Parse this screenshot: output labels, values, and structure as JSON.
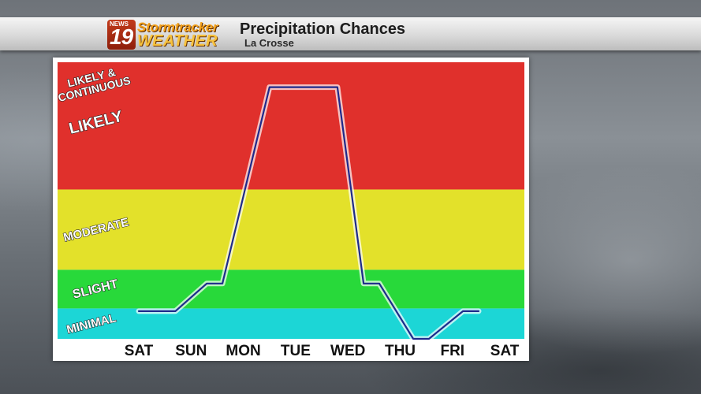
{
  "header": {
    "logo": {
      "news": "NEWS",
      "number": "19",
      "brand_top": "Stormtracker",
      "brand_bottom": "WEATHER",
      "accent_color": "#f5a21b",
      "box_color": "#b1321a"
    },
    "title": "Precipitation Chances",
    "location": "La Crosse"
  },
  "chart_data": {
    "type": "line",
    "title": "Precipitation Chances",
    "subtitle": "La Crosse",
    "categories": [
      "SAT",
      "SUN",
      "MON",
      "TUE",
      "WED",
      "THU",
      "FRI",
      "SAT"
    ],
    "x": [
      "SAT",
      "SUN",
      "MON",
      "TUE",
      "WED",
      "THU",
      "FRI",
      "SAT"
    ],
    "ylim": [
      0,
      100
    ],
    "bands": [
      {
        "label": "MINIMAL",
        "from": 0,
        "to": 11,
        "color": "#1cd6d6"
      },
      {
        "label": "SLIGHT",
        "from": 11,
        "to": 25,
        "color": "#28d93a"
      },
      {
        "label": "MODERATE",
        "from": 25,
        "to": 54,
        "color": "#e3e12a"
      },
      {
        "label": "LIKELY",
        "from": 54,
        "to": 100,
        "color": "#e0302c"
      }
    ],
    "top_label_lines": [
      "LIKELY &",
      "CONTINUOUS"
    ],
    "line_color": "#1e2a8c",
    "series": [
      {
        "points": [
          {
            "x": 0,
            "y": 10
          },
          {
            "x": 0.7,
            "y": 10
          },
          {
            "x": 1.3,
            "y": 20
          },
          {
            "x": 1.6,
            "y": 20
          },
          {
            "x": 2.5,
            "y": 91
          },
          {
            "x": 3.8,
            "y": 91
          },
          {
            "x": 4.3,
            "y": 20
          },
          {
            "x": 4.6,
            "y": 20
          },
          {
            "x": 5.25,
            "y": 0
          },
          {
            "x": 5.55,
            "y": 0
          },
          {
            "x": 6.2,
            "y": 10
          },
          {
            "x": 6.5,
            "y": 10
          }
        ]
      }
    ],
    "grid": false,
    "legend": "none"
  }
}
